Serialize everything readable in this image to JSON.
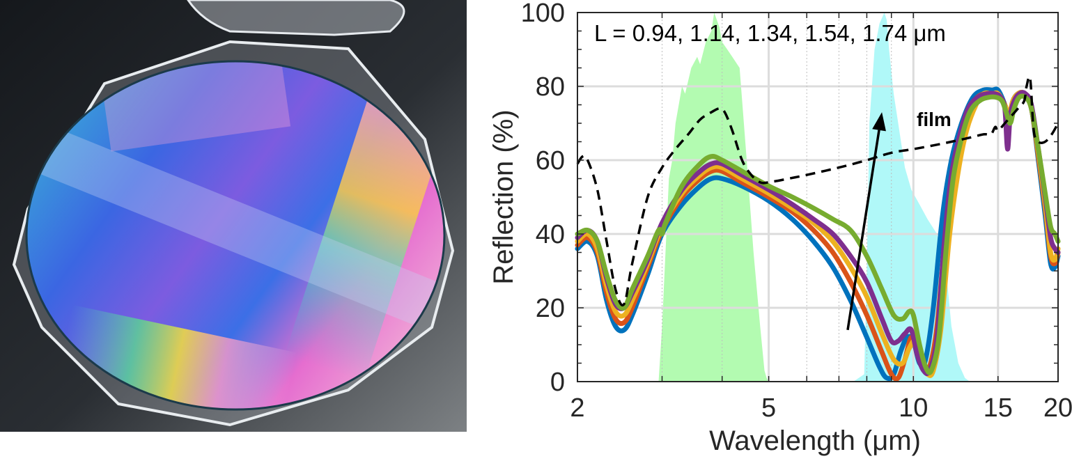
{
  "photo": {
    "description": "Wafer in open clear plastic carrier showing iridescent rainbow thin-film colors",
    "colors": {
      "background_dark": "#1c1f24",
      "table_gray": "#8a8d90",
      "carrier_edge": "#d9dde2",
      "wafer_blue": "#3a6fe0",
      "wafer_cyan": "#3bb3c9",
      "wafer_magenta": "#e36fd0",
      "wafer_pink": "#f2a9d6",
      "wafer_yellow": "#f6d23a",
      "wafer_purple": "#7a5ae0"
    }
  },
  "chart_data": {
    "type": "line",
    "title": "",
    "annotation": "L = 0.94, 1.14, 1.34, 1.54, 1.74 μm",
    "film_label": "film",
    "xlabel": "Wavelength (μm)",
    "ylabel": "Reflection (%)",
    "xscale": "log",
    "xlim": [
      2,
      20
    ],
    "ylim": [
      0,
      100
    ],
    "xticks": [
      2,
      5,
      10,
      15,
      20
    ],
    "xtick_labels": [
      "2",
      "5",
      "10",
      "15",
      "20"
    ],
    "yticks": [
      0,
      20,
      40,
      60,
      80,
      100
    ],
    "ytick_labels": [
      "0",
      "20",
      "40",
      "60",
      "80",
      "100"
    ],
    "grid": true,
    "minor_grid_x": [
      3,
      4,
      6,
      7,
      8,
      9
    ],
    "bands": [
      {
        "name": "atmospheric-window-3-5um",
        "color": "#b3fbb1",
        "x": [
          2.95,
          3.0,
          3.1,
          3.15,
          3.2,
          3.3,
          3.35,
          3.45,
          3.55,
          3.6,
          3.7,
          3.8,
          3.85,
          3.95,
          4.0,
          4.1,
          4.2,
          4.35,
          4.5,
          4.65,
          4.8,
          4.9,
          4.95,
          5.0
        ],
        "y": [
          0,
          15,
          55,
          60,
          70,
          80,
          78,
          85,
          88,
          86,
          92,
          95,
          100,
          96,
          92,
          90,
          88,
          85,
          60,
          35,
          15,
          3,
          1,
          0
        ]
      },
      {
        "name": "atmospheric-window-8-13um",
        "color": "#b0f8f8",
        "x": [
          7.5,
          7.9,
          8.0,
          8.1,
          8.3,
          8.5,
          8.7,
          8.8,
          8.9,
          9.1,
          9.3,
          9.6,
          9.9,
          10.3,
          10.7,
          11.2,
          11.7,
          12.0,
          12.4,
          12.8,
          13.1
        ],
        "y": [
          0,
          2,
          30,
          70,
          90,
          97,
          100,
          98,
          90,
          78,
          70,
          58,
          52,
          48,
          44,
          40,
          30,
          15,
          5,
          1,
          0
        ]
      }
    ],
    "series": [
      {
        "name": "L = 0.94 μm",
        "color": "#0072bd",
        "x": [
          2.0,
          2.1,
          2.2,
          2.3,
          2.4,
          2.5,
          2.6,
          2.8,
          3.0,
          3.3,
          3.6,
          3.8,
          4.0,
          4.4,
          5.0,
          5.6,
          6.2,
          6.8,
          7.4,
          8.0,
          8.5,
          8.8,
          9.1,
          9.4,
          9.7,
          10.0,
          10.3,
          10.6,
          11.0,
          11.5,
          12.0,
          12.6,
          13.3,
          14.0,
          14.6,
          15.0,
          15.5,
          15.8,
          16.1,
          16.5,
          17.0,
          17.6,
          18.2,
          18.8,
          19.3,
          19.7,
          20.0
        ],
        "y": [
          36,
          38,
          34,
          22,
          15,
          14,
          18,
          29,
          40,
          48,
          53,
          55,
          55,
          53,
          49,
          44,
          38,
          31,
          22,
          12,
          4,
          1,
          2,
          8,
          12,
          11,
          5,
          6,
          20,
          45,
          60,
          70,
          77,
          79,
          79,
          79,
          75,
          71,
          76,
          78,
          78,
          74,
          60,
          45,
          32,
          31,
          34
        ]
      },
      {
        "name": "L = 1.14 μm",
        "color": "#d95319",
        "x": [
          2.0,
          2.1,
          2.2,
          2.3,
          2.4,
          2.5,
          2.6,
          2.8,
          3.0,
          3.3,
          3.6,
          3.8,
          4.0,
          4.4,
          5.0,
          5.6,
          6.2,
          6.8,
          7.4,
          8.0,
          8.6,
          9.0,
          9.3,
          9.6,
          9.9,
          10.2,
          10.5,
          10.8,
          11.2,
          11.7,
          12.2,
          12.8,
          13.4,
          14.0,
          14.6,
          15.0,
          15.5,
          15.8,
          16.1,
          16.5,
          17.0,
          17.6,
          18.2,
          18.8,
          19.3,
          19.7,
          20.0
        ],
        "y": [
          37,
          39,
          35,
          24,
          17,
          16,
          20,
          31,
          41,
          50,
          55,
          57,
          57,
          54,
          50,
          46,
          41,
          35,
          27,
          18,
          8,
          2,
          1,
          6,
          12,
          9,
          4,
          4,
          15,
          42,
          58,
          69,
          76,
          78,
          78,
          78,
          75,
          72,
          76,
          78,
          78,
          74,
          61,
          47,
          34,
          32,
          35
        ]
      },
      {
        "name": "L = 1.34 μm",
        "color": "#edb120",
        "x": [
          2.0,
          2.1,
          2.2,
          2.3,
          2.4,
          2.5,
          2.6,
          2.8,
          3.0,
          3.3,
          3.6,
          3.8,
          4.0,
          4.4,
          5.0,
          5.6,
          6.2,
          6.8,
          7.4,
          8.0,
          8.6,
          9.1,
          9.5,
          9.8,
          10.1,
          10.4,
          10.7,
          11.0,
          11.4,
          11.9,
          12.4,
          12.9,
          13.5,
          14.0,
          14.6,
          15.0,
          15.5,
          15.8,
          16.1,
          16.5,
          17.0,
          17.6,
          18.2,
          18.8,
          19.3,
          19.7,
          20.0
        ],
        "y": [
          38,
          40,
          36,
          26,
          19,
          18,
          22,
          32,
          42,
          51,
          56,
          58,
          58,
          55,
          51,
          47,
          43,
          38,
          31,
          23,
          13,
          6,
          5,
          9,
          11,
          5,
          2,
          3,
          14,
          40,
          57,
          68,
          75,
          78,
          78,
          78,
          75,
          72,
          76,
          78,
          78,
          74,
          62,
          48,
          35,
          33,
          36
        ]
      },
      {
        "name": "L = 1.54 μm",
        "color": "#7e2f8e",
        "x": [
          2.0,
          2.1,
          2.2,
          2.3,
          2.4,
          2.5,
          2.6,
          2.8,
          3.0,
          3.3,
          3.6,
          3.8,
          4.0,
          4.4,
          5.0,
          5.6,
          6.2,
          6.8,
          7.4,
          8.0,
          8.6,
          9.0,
          9.3,
          9.6,
          9.9,
          10.2,
          10.5,
          10.8,
          11.2,
          11.6,
          12.0,
          12.5,
          13.0,
          13.6,
          14.2,
          14.8,
          15.2,
          15.5,
          15.7,
          15.9,
          16.2,
          16.6,
          17.1,
          17.6,
          18.2,
          18.8,
          19.3,
          19.7,
          20.0
        ],
        "y": [
          39,
          41,
          38,
          28,
          21,
          20,
          24,
          33,
          43,
          52,
          57,
          59,
          59,
          56,
          52,
          48,
          44,
          40,
          34,
          27,
          17,
          11,
          11,
          13,
          14,
          7,
          3,
          3,
          12,
          38,
          56,
          67,
          74,
          77,
          78,
          78,
          77,
          74,
          63,
          72,
          76,
          78,
          78,
          75,
          63,
          50,
          39,
          36,
          35
        ]
      },
      {
        "name": "L = 1.74 μm",
        "color": "#77ac30",
        "x": [
          2.0,
          2.1,
          2.2,
          2.3,
          2.4,
          2.5,
          2.6,
          2.8,
          2.95,
          3.0,
          3.05,
          3.3,
          3.6,
          3.8,
          4.0,
          4.4,
          5.0,
          5.6,
          6.2,
          6.8,
          7.4,
          8.0,
          8.6,
          9.1,
          9.5,
          9.8,
          10.0,
          10.3,
          10.6,
          10.9,
          11.3,
          11.7,
          12.1,
          12.6,
          13.1,
          13.7,
          14.3,
          14.9,
          15.3,
          15.6,
          15.9,
          16.2,
          16.6,
          17.1,
          17.6,
          18.2,
          18.8,
          19.3,
          19.7,
          20.0
        ],
        "y": [
          40,
          41,
          38,
          29,
          22,
          20,
          25,
          34,
          41,
          40,
          43,
          53,
          59,
          61,
          60,
          57,
          53,
          50,
          47,
          44,
          41,
          34,
          25,
          18,
          17,
          19,
          18,
          10,
          4,
          3,
          12,
          36,
          55,
          66,
          73,
          76,
          77,
          77,
          76,
          73,
          70,
          74,
          77,
          77,
          74,
          63,
          51,
          42,
          40,
          38
        ]
      },
      {
        "name": "film",
        "color": "#000000",
        "dashed": true,
        "x": [
          2.0,
          2.05,
          2.1,
          2.2,
          2.3,
          2.4,
          2.5,
          2.6,
          2.8,
          3.0,
          3.2,
          3.4,
          3.6,
          3.8,
          3.95,
          4.05,
          4.2,
          4.4,
          4.6,
          4.8,
          5.0,
          5.5,
          6.0,
          7.0,
          8.0,
          9.0,
          10.0,
          11.0,
          12.0,
          13.0,
          14.0,
          14.5,
          14.8,
          15.0,
          15.5,
          16.0,
          16.5,
          17.0,
          17.2,
          17.5,
          17.8,
          18.2,
          18.8,
          19.4,
          20.0
        ],
        "y": [
          59,
          61,
          60,
          52,
          38,
          25,
          21,
          32,
          50,
          58,
          63,
          67,
          71,
          73,
          74,
          73,
          68,
          60,
          56,
          54,
          54,
          55,
          56,
          58,
          60,
          62,
          63,
          64,
          65,
          66,
          67,
          67,
          69,
          68,
          70,
          72,
          74,
          76,
          80,
          82,
          68,
          65,
          65,
          67,
          70
        ]
      }
    ],
    "arrow": {
      "from": [
        7.3,
        14
      ],
      "to": [
        8.6,
        73
      ],
      "meaning": "increasing L"
    }
  }
}
